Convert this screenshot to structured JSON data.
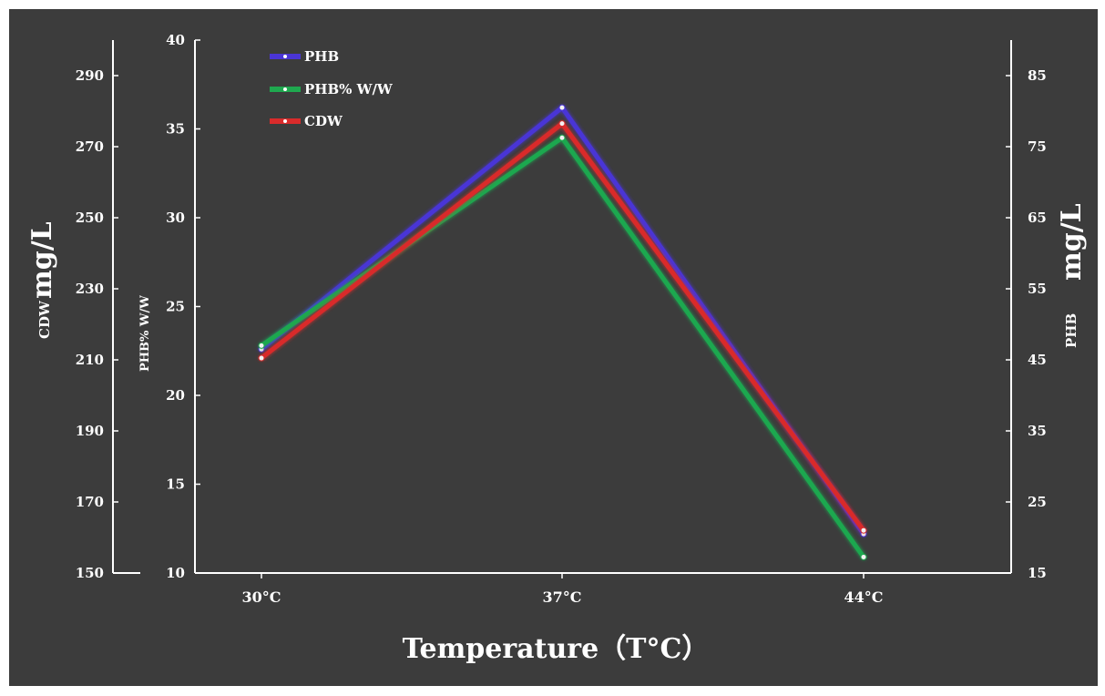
{
  "chart_data": {
    "type": "line",
    "title": "",
    "xlabel": "Temperature（T°C）",
    "categories": [
      "30°C",
      "37°C",
      "44°C"
    ],
    "axes": {
      "left_outer": {
        "label_small": "CDW",
        "label_big": "mg/L",
        "range": [
          150,
          300
        ],
        "ticks": [
          "150",
          "170",
          "190",
          "210",
          "230",
          "250",
          "270",
          "290"
        ]
      },
      "left_inner": {
        "label": "PHB% W/W",
        "range": [
          10,
          40
        ],
        "ticks": [
          "10",
          "15",
          "20",
          "25",
          "30",
          "35",
          "40"
        ]
      },
      "right": {
        "label_small": "PHB",
        "label_big": "mg/L",
        "range": [
          15,
          90
        ],
        "ticks": [
          "15",
          "25",
          "35",
          "45",
          "55",
          "65",
          "75",
          "85"
        ]
      }
    },
    "series": [
      {
        "name": "PHB",
        "axis": "right",
        "color": "#4a35d6",
        "values": [
          46.5,
          80.5,
          20.5
        ]
      },
      {
        "name": "PHB% W/W",
        "axis": "left_inner",
        "color": "#1fa84f",
        "values": [
          22.8,
          34.5,
          10.9
        ]
      },
      {
        "name": "CDW",
        "axis": "left_outer",
        "color": "#d92b2b",
        "values": [
          210.5,
          276.5,
          162.0
        ]
      }
    ],
    "legend": [
      "PHB",
      "PHB% W/W",
      "CDW"
    ],
    "legend_position": "top-left"
  }
}
